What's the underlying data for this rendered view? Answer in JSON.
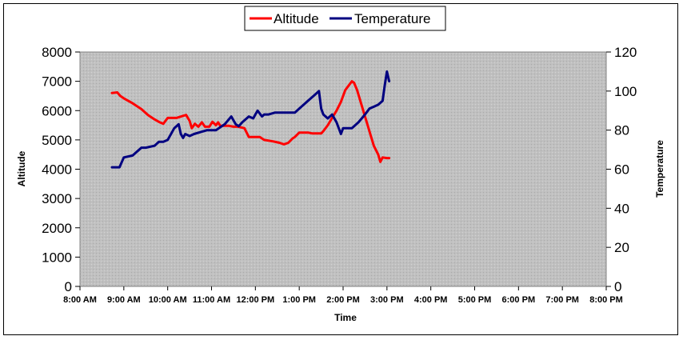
{
  "chart_data": {
    "type": "line",
    "title": "",
    "xlabel": "Time",
    "ylabel": "Altitude",
    "y2label": "Temperature",
    "xlim": [
      8,
      20
    ],
    "ylim": [
      0,
      8000
    ],
    "y2lim": [
      0,
      120
    ],
    "x_ticks": [
      "8:00 AM",
      "9:00 AM",
      "10:00 AM",
      "11:00 AM",
      "12:00 PM",
      "1:00 PM",
      "2:00 PM",
      "3:00 PM",
      "4:00 PM",
      "5:00 PM",
      "6:00 PM",
      "7:00 PM",
      "8:00 PM"
    ],
    "y_ticks": [
      "0",
      "1000",
      "2000",
      "3000",
      "4000",
      "5000",
      "6000",
      "7000",
      "8000"
    ],
    "y2_ticks": [
      "0",
      "20",
      "40",
      "60",
      "80",
      "100",
      "120"
    ],
    "grid": false,
    "plot_background": "#c0c0c0",
    "legend_position": "top-center",
    "series": [
      {
        "name": "Altitude",
        "axis": "left",
        "color": "#ff0000",
        "x": [
          8.73,
          8.85,
          8.92,
          9.0,
          9.2,
          9.4,
          9.55,
          9.7,
          9.82,
          9.9,
          10.0,
          10.2,
          10.35,
          10.42,
          10.5,
          10.55,
          10.62,
          10.7,
          10.78,
          10.85,
          10.95,
          11.02,
          11.1,
          11.15,
          11.2,
          11.3,
          11.4,
          11.5,
          11.6,
          11.75,
          11.85,
          11.95,
          12.1,
          12.2,
          12.4,
          12.55,
          12.65,
          12.75,
          12.85,
          12.9,
          13.0,
          13.1,
          13.2,
          13.3,
          13.4,
          13.5,
          13.55,
          13.65,
          13.75,
          13.85,
          13.95,
          14.05,
          14.15,
          14.2,
          14.25,
          14.32,
          14.4,
          14.5,
          14.6,
          14.7,
          14.8,
          14.85,
          14.9,
          15.0,
          15.05
        ],
        "values": [
          6600,
          6620,
          6500,
          6420,
          6250,
          6050,
          5850,
          5700,
          5600,
          5550,
          5750,
          5750,
          5820,
          5850,
          5650,
          5400,
          5550,
          5450,
          5600,
          5450,
          5450,
          5620,
          5500,
          5600,
          5480,
          5480,
          5480,
          5450,
          5450,
          5400,
          5100,
          5100,
          5100,
          5000,
          4950,
          4900,
          4850,
          4900,
          5050,
          5100,
          5250,
          5250,
          5250,
          5220,
          5220,
          5220,
          5300,
          5500,
          5750,
          6000,
          6300,
          6700,
          6900,
          7000,
          6950,
          6700,
          6300,
          5800,
          5300,
          4800,
          4500,
          4250,
          4400,
          4380,
          4380
        ]
      },
      {
        "name": "Temperature",
        "axis": "right",
        "color": "#000080",
        "x": [
          8.73,
          8.9,
          9.0,
          9.2,
          9.4,
          9.5,
          9.7,
          9.8,
          9.9,
          10.0,
          10.15,
          10.25,
          10.3,
          10.35,
          10.4,
          10.5,
          10.6,
          10.75,
          10.9,
          11.1,
          11.3,
          11.45,
          11.55,
          11.62,
          11.7,
          11.85,
          11.95,
          12.0,
          12.05,
          12.15,
          12.2,
          12.3,
          12.45,
          12.6,
          12.75,
          12.9,
          13.0,
          13.2,
          13.35,
          13.45,
          13.5,
          13.55,
          13.65,
          13.75,
          13.85,
          13.95,
          14.0,
          14.05,
          14.2,
          14.35,
          14.5,
          14.6,
          14.7,
          14.8,
          14.9,
          14.95,
          15.0,
          15.05
        ],
        "values": [
          61,
          61,
          66,
          67,
          71,
          71,
          72,
          74,
          74,
          75,
          81,
          83,
          78,
          76,
          78,
          77,
          78,
          79,
          80,
          80,
          83,
          87,
          83,
          82,
          84,
          87,
          86,
          88,
          90,
          87,
          88,
          88,
          89,
          89,
          89,
          89,
          91,
          95,
          98,
          100,
          91,
          88,
          86,
          88,
          84,
          78,
          81,
          81,
          81,
          84,
          88,
          91,
          92,
          93,
          95,
          103,
          110,
          105
        ]
      }
    ]
  }
}
